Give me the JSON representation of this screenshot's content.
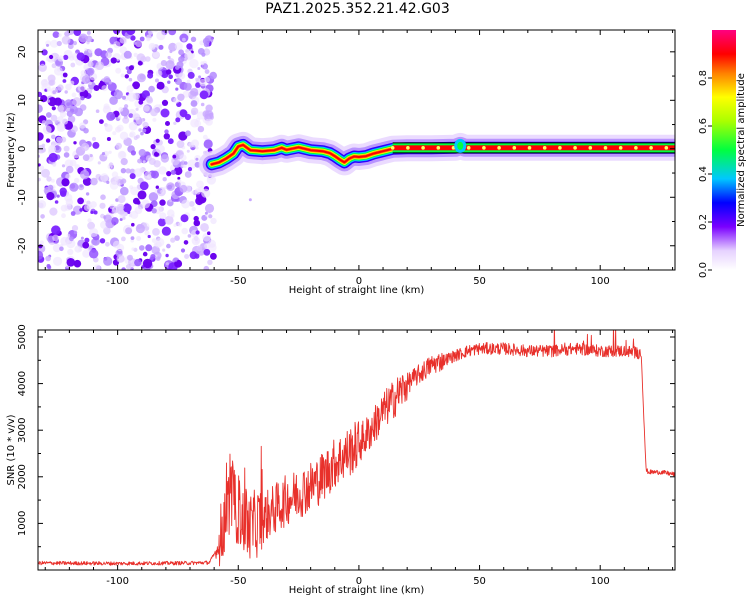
{
  "title": "PAZ1.2025.352.21.42.G03",
  "chart_data": [
    {
      "type": "heatmap",
      "name": "spectrogram",
      "xlabel": "Height of straight line (km)",
      "ylabel": "Frequency (Hz)",
      "xlim": [
        -133,
        131
      ],
      "ylim": [
        -25,
        24.5
      ],
      "xticks": [
        -100,
        -50,
        0,
        50,
        100
      ],
      "xtick_labels": [
        "-100",
        "-50",
        "0",
        "50",
        "100"
      ],
      "yticks": [
        20,
        10,
        0,
        -10,
        -20
      ],
      "ytick_labels": [
        "20",
        "10",
        "0",
        "-10",
        "-20"
      ],
      "noise_region_x": [
        -133,
        -60
      ],
      "signal_path": {
        "x": [
          -61,
          -58,
          -55,
          -52,
          -50,
          -48,
          -45,
          -40,
          -35,
          -32,
          -30,
          -27,
          -25,
          -20,
          -15,
          -12,
          -10,
          -8,
          -6,
          -4,
          -2,
          0,
          3,
          6,
          10,
          14,
          20,
          25,
          30,
          40,
          42,
          44,
          50,
          60,
          80,
          100,
          120,
          131
        ],
        "y": [
          -3.2,
          -2.8,
          -2.0,
          -1.0,
          0.5,
          0.8,
          -0.3,
          -0.5,
          -0.3,
          0.2,
          -0.2,
          0.1,
          0.3,
          -0.3,
          -0.5,
          -0.9,
          -1.5,
          -2.2,
          -2.8,
          -2.0,
          -1.6,
          -1.7,
          -1.5,
          -1.0,
          -0.5,
          0.0,
          0.1,
          0.1,
          0.1,
          0.2,
          0.6,
          0.2,
          0.2,
          0.2,
          0.2,
          0.2,
          0.2,
          0.2
        ]
      },
      "colorbar": {
        "label": "Normalized spectral amplitude",
        "range": [
          0.0,
          1.0
        ],
        "ticks": [
          0.0,
          0.2,
          0.4,
          0.6,
          0.8
        ],
        "tick_labels": [
          "0.0",
          "0.2",
          "0.4",
          "0.6",
          "0.8"
        ]
      }
    },
    {
      "type": "line",
      "name": "snr",
      "xlabel": "Height of straight line (km)",
      "ylabel": "SNR (10 * v/v)",
      "xlim": [
        -133,
        131
      ],
      "ylim": [
        0,
        5150
      ],
      "xticks": [
        -100,
        -50,
        0,
        50,
        100
      ],
      "xtick_labels": [
        "-100",
        "-50",
        "0",
        "50",
        "100"
      ],
      "yticks": [
        1000,
        2000,
        3000,
        4000,
        5000
      ],
      "ytick_labels": [
        "1000",
        "2000",
        "3000",
        "4000",
        "5000"
      ],
      "color": "#e8302b",
      "x": [
        -133,
        -100,
        -70,
        -62,
        -58,
        -55,
        -53,
        -51,
        -49,
        -47,
        -45,
        -40,
        -35,
        -30,
        -25,
        -20,
        -15,
        -10,
        -5,
        0,
        5,
        10,
        15,
        20,
        25,
        30,
        35,
        40,
        45,
        50,
        60,
        70,
        80,
        90,
        100,
        110,
        117,
        119,
        120,
        125,
        131
      ],
      "y": [
        150,
        140,
        150,
        160,
        500,
        1300,
        1600,
        1300,
        1200,
        1000,
        900,
        1100,
        1300,
        1500,
        1650,
        1800,
        2000,
        2300,
        2500,
        2700,
        3000,
        3400,
        3700,
        4000,
        4200,
        4400,
        4500,
        4600,
        4700,
        4750,
        4750,
        4700,
        4700,
        4750,
        4700,
        4700,
        4650,
        2150,
        2100,
        2100,
        2050
      ]
    }
  ]
}
